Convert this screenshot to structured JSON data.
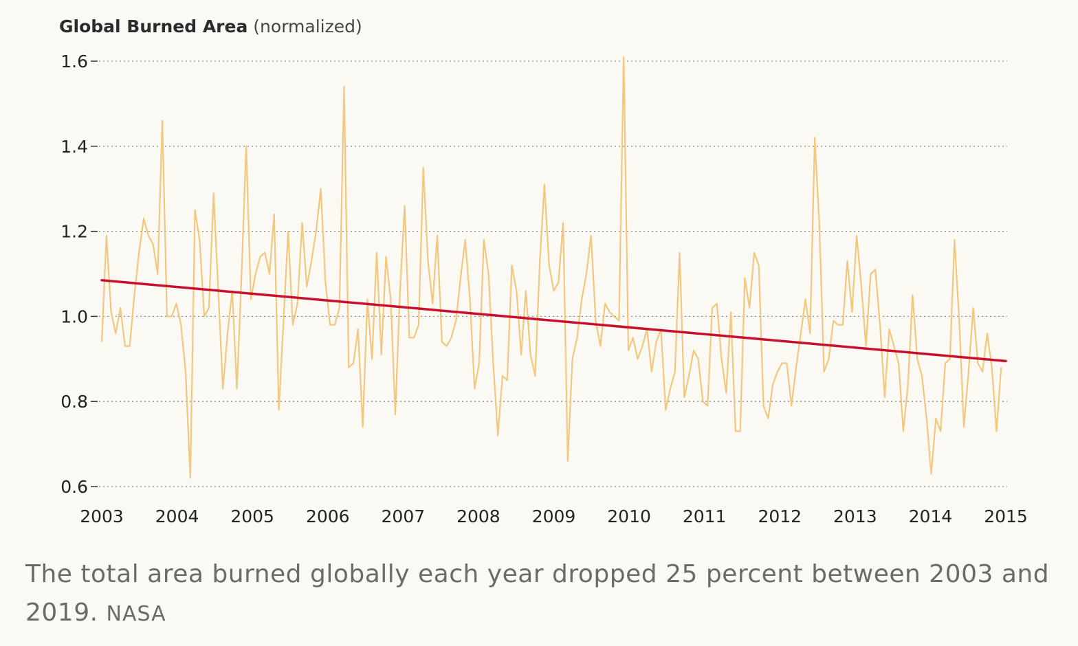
{
  "chart_data": {
    "type": "line",
    "title": "Global Burned Area",
    "title_suffix": "(normalized)",
    "xlabel": "",
    "ylabel": "",
    "xlim": [
      2003,
      2015
    ],
    "ylim": [
      0.6,
      1.6
    ],
    "x_ticks": [
      "2003",
      "2004",
      "2005",
      "2006",
      "2007",
      "2008",
      "2009",
      "2010",
      "2011",
      "2012",
      "2013",
      "2014",
      "2015"
    ],
    "y_ticks": [
      "0.6",
      "0.8",
      "1.0",
      "1.2",
      "1.4",
      "1.6"
    ],
    "grid": "horizontal-dotted",
    "series": [
      {
        "color": "#f2c77e",
        "values": [
          0.94,
          1.19,
          1.01,
          0.96,
          1.02,
          0.93,
          0.93,
          1.05,
          1.15,
          1.23,
          1.19,
          1.17,
          1.1,
          1.46,
          1.0,
          1.0,
          1.03,
          0.98,
          0.87,
          0.62,
          1.25,
          1.18,
          1.0,
          1.02,
          1.29,
          1.06,
          0.83,
          0.96,
          1.06,
          0.83,
          1.1,
          1.4,
          1.04,
          1.1,
          1.14,
          1.15,
          1.1,
          1.24,
          0.78,
          0.99,
          1.2,
          0.98,
          1.03,
          1.22,
          1.07,
          1.13,
          1.2,
          1.3,
          1.08,
          0.98,
          0.98,
          1.02,
          1.54,
          0.88,
          0.89,
          0.97,
          0.74,
          1.04,
          0.9,
          1.15,
          0.91,
          1.14,
          1.04,
          0.77,
          1.06,
          1.26,
          0.95,
          0.95,
          0.98,
          1.35,
          1.13,
          1.03,
          1.19,
          0.94,
          0.93,
          0.95,
          0.99,
          1.09,
          1.18,
          1.04,
          0.83,
          0.89,
          1.18,
          1.1,
          0.89,
          0.72,
          0.86,
          0.85,
          1.12,
          1.06,
          0.91,
          1.06,
          0.91,
          0.86,
          1.13,
          1.31,
          1.12,
          1.06,
          1.08,
          1.22,
          0.66,
          0.9,
          0.95,
          1.04,
          1.1,
          1.19,
          0.99,
          0.93,
          1.03,
          1.01,
          1.0,
          0.99,
          1.61,
          0.92,
          0.95,
          0.9,
          0.93,
          0.97,
          0.87,
          0.94,
          0.97,
          0.78,
          0.83,
          0.87,
          1.15,
          0.81,
          0.86,
          0.92,
          0.9,
          0.8,
          0.79,
          1.02,
          1.03,
          0.9,
          0.82,
          1.01,
          0.73,
          0.73,
          1.09,
          1.02,
          1.15,
          1.12,
          0.79,
          0.76,
          0.84,
          0.87,
          0.89,
          0.89,
          0.79,
          0.88,
          0.96,
          1.04,
          0.96,
          1.42,
          1.21,
          0.87,
          0.9,
          0.99,
          0.98,
          0.98,
          1.13,
          1.01,
          1.19,
          1.07,
          0.93,
          1.1,
          1.11,
          0.98,
          0.81,
          0.97,
          0.93,
          0.89,
          0.73,
          0.84,
          1.05,
          0.9,
          0.86,
          0.76,
          0.63,
          0.76,
          0.73,
          0.89,
          0.9,
          1.18,
          0.99,
          0.74,
          0.87,
          1.02,
          0.89,
          0.87,
          0.96,
          0.88,
          0.73,
          0.88
        ]
      },
      {
        "color": "#c8102e",
        "values": [
          1.085,
          0.895
        ]
      }
    ]
  },
  "caption": {
    "text": "The total area burned globally each year dropped 25 percent between 2003 and 2019.",
    "credit": "NASA"
  }
}
